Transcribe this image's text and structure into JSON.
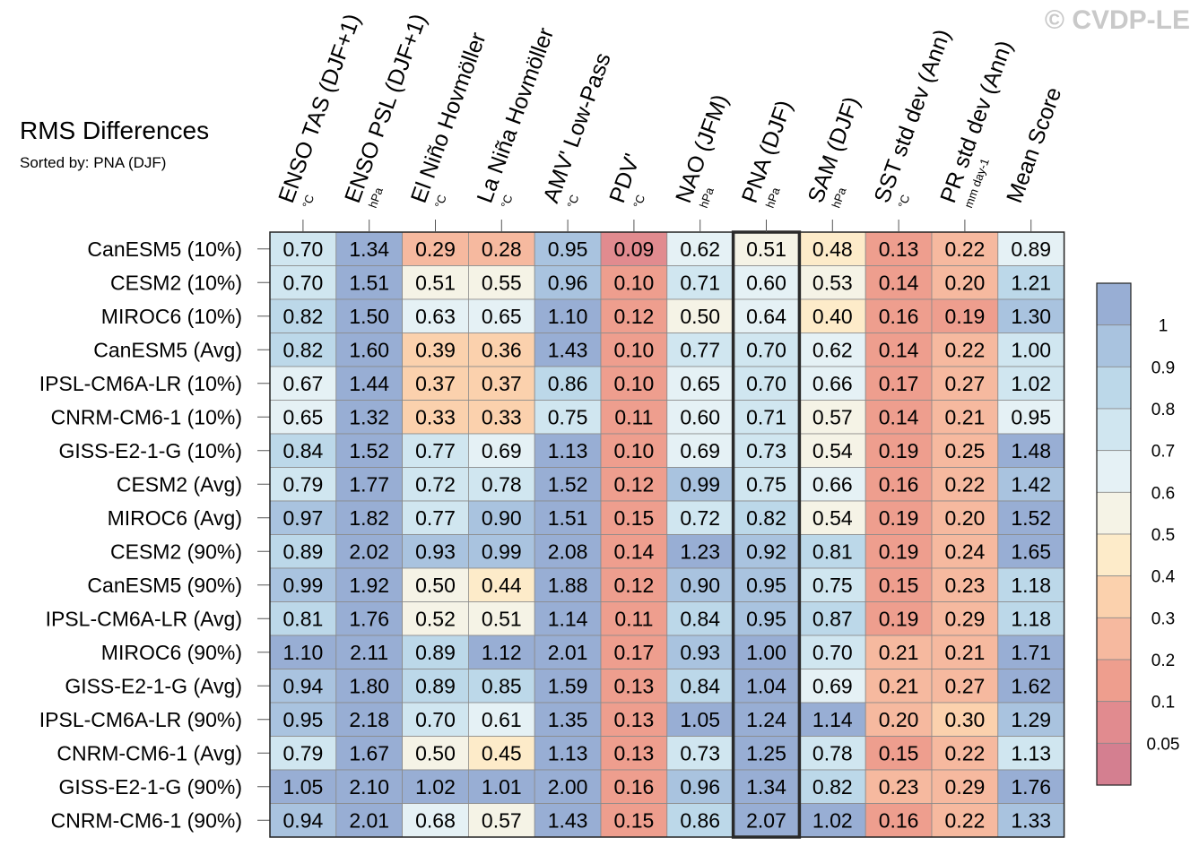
{
  "watermark": "© CVDP-LE",
  "chart_data": {
    "type": "heatmap",
    "title": "RMS Differences",
    "subtitle": "Sorted by: PNA (DJF)",
    "columns": [
      {
        "name": "ENSO TAS (DJF+1)",
        "unit": "°C"
      },
      {
        "name": "ENSO PSL (DJF+1)",
        "unit": "hPa"
      },
      {
        "name": "El Niño Hovmöller",
        "unit": "°C"
      },
      {
        "name": "La Niña Hovmöller",
        "unit": "°C"
      },
      {
        "name": "AMV' Low-Pass",
        "unit": "°C"
      },
      {
        "name": "PDV'",
        "unit": "°C"
      },
      {
        "name": "NAO (JFM)",
        "unit": "hPa"
      },
      {
        "name": "PNA (DJF)",
        "unit": "hPa"
      },
      {
        "name": "SAM (DJF)",
        "unit": "hPa"
      },
      {
        "name": "SST std dev (Ann)",
        "unit": "°C"
      },
      {
        "name": "PR std dev (Ann)",
        "unit": "mm day-1"
      },
      {
        "name": "Mean Score",
        "unit": ""
      }
    ],
    "rows": [
      "CanESM5 (10%)",
      "CESM2 (10%)",
      "MIROC6 (10%)",
      "CanESM5 (Avg)",
      "IPSL-CM6A-LR (10%)",
      "CNRM-CM6-1 (10%)",
      "GISS-E2-1-G (10%)",
      "CESM2 (Avg)",
      "MIROC6 (Avg)",
      "CESM2 (90%)",
      "CanESM5 (90%)",
      "IPSL-CM6A-LR (Avg)",
      "MIROC6 (90%)",
      "GISS-E2-1-G (Avg)",
      "IPSL-CM6A-LR (90%)",
      "CNRM-CM6-1 (Avg)",
      "GISS-E2-1-G (90%)",
      "CNRM-CM6-1 (90%)"
    ],
    "values": [
      [
        "0.70",
        "1.34",
        "0.29",
        "0.28",
        "0.95",
        "0.09",
        "0.62",
        "0.51",
        "0.48",
        "0.13",
        "0.22",
        "0.89"
      ],
      [
        "0.70",
        "1.51",
        "0.51",
        "0.55",
        "0.96",
        "0.10",
        "0.71",
        "0.60",
        "0.53",
        "0.14",
        "0.20",
        "1.21"
      ],
      [
        "0.82",
        "1.50",
        "0.63",
        "0.65",
        "1.10",
        "0.12",
        "0.50",
        "0.64",
        "0.40",
        "0.16",
        "0.19",
        "1.30"
      ],
      [
        "0.82",
        "1.60",
        "0.39",
        "0.36",
        "1.43",
        "0.10",
        "0.77",
        "0.70",
        "0.62",
        "0.14",
        "0.22",
        "1.00"
      ],
      [
        "0.67",
        "1.44",
        "0.37",
        "0.37",
        "0.86",
        "0.10",
        "0.65",
        "0.70",
        "0.66",
        "0.17",
        "0.27",
        "1.02"
      ],
      [
        "0.65",
        "1.32",
        "0.33",
        "0.33",
        "0.75",
        "0.11",
        "0.60",
        "0.71",
        "0.57",
        "0.14",
        "0.21",
        "0.95"
      ],
      [
        "0.84",
        "1.52",
        "0.77",
        "0.69",
        "1.13",
        "0.10",
        "0.69",
        "0.73",
        "0.54",
        "0.19",
        "0.25",
        "1.48"
      ],
      [
        "0.79",
        "1.77",
        "0.72",
        "0.78",
        "1.52",
        "0.12",
        "0.99",
        "0.75",
        "0.66",
        "0.16",
        "0.22",
        "1.42"
      ],
      [
        "0.97",
        "1.82",
        "0.77",
        "0.90",
        "1.51",
        "0.15",
        "0.72",
        "0.82",
        "0.54",
        "0.19",
        "0.20",
        "1.52"
      ],
      [
        "0.89",
        "2.02",
        "0.93",
        "0.99",
        "2.08",
        "0.14",
        "1.23",
        "0.92",
        "0.81",
        "0.19",
        "0.24",
        "1.65"
      ],
      [
        "0.99",
        "1.92",
        "0.50",
        "0.44",
        "1.88",
        "0.12",
        "0.90",
        "0.95",
        "0.75",
        "0.15",
        "0.23",
        "1.18"
      ],
      [
        "0.81",
        "1.76",
        "0.52",
        "0.51",
        "1.14",
        "0.11",
        "0.84",
        "0.95",
        "0.87",
        "0.19",
        "0.29",
        "1.18"
      ],
      [
        "1.10",
        "2.11",
        "0.89",
        "1.12",
        "2.01",
        "0.17",
        "0.93",
        "1.00",
        "0.70",
        "0.21",
        "0.21",
        "1.71"
      ],
      [
        "0.94",
        "1.80",
        "0.89",
        "0.85",
        "1.59",
        "0.13",
        "0.84",
        "1.04",
        "0.69",
        "0.21",
        "0.27",
        "1.62"
      ],
      [
        "0.95",
        "2.18",
        "0.70",
        "0.61",
        "1.35",
        "0.13",
        "1.05",
        "1.24",
        "1.14",
        "0.20",
        "0.30",
        "1.29"
      ],
      [
        "0.79",
        "1.67",
        "0.50",
        "0.45",
        "1.13",
        "0.13",
        "0.73",
        "1.25",
        "0.78",
        "0.15",
        "0.22",
        "1.13"
      ],
      [
        "1.05",
        "2.10",
        "1.02",
        "1.01",
        "2.00",
        "0.16",
        "0.96",
        "1.34",
        "0.82",
        "0.23",
        "0.29",
        "1.76"
      ],
      [
        "0.94",
        "2.01",
        "0.68",
        "0.57",
        "1.43",
        "0.15",
        "0.86",
        "2.07",
        "1.02",
        "0.16",
        "0.22",
        "1.33"
      ]
    ],
    "highlight_column": "PNA (DJF)",
    "colorbar": {
      "labels": [
        "1",
        "0.9",
        "0.8",
        "0.7",
        "0.6",
        "0.5",
        "0.4",
        "0.3",
        "0.2",
        "0.1",
        "0.05"
      ],
      "levels": [
        0.05,
        0.1,
        0.2,
        0.3,
        0.4,
        0.5,
        0.6,
        0.7,
        0.8,
        0.9,
        1
      ],
      "colors": [
        "#d47f90",
        "#e18b8f",
        "#ee9e8e",
        "#f6b99f",
        "#fbd1ad",
        "#fdebc9",
        "#f5f3e6",
        "#e5f1f5",
        "#d0e6f0",
        "#bcd8e9",
        "#a9c3df",
        "#98aed4"
      ]
    }
  }
}
